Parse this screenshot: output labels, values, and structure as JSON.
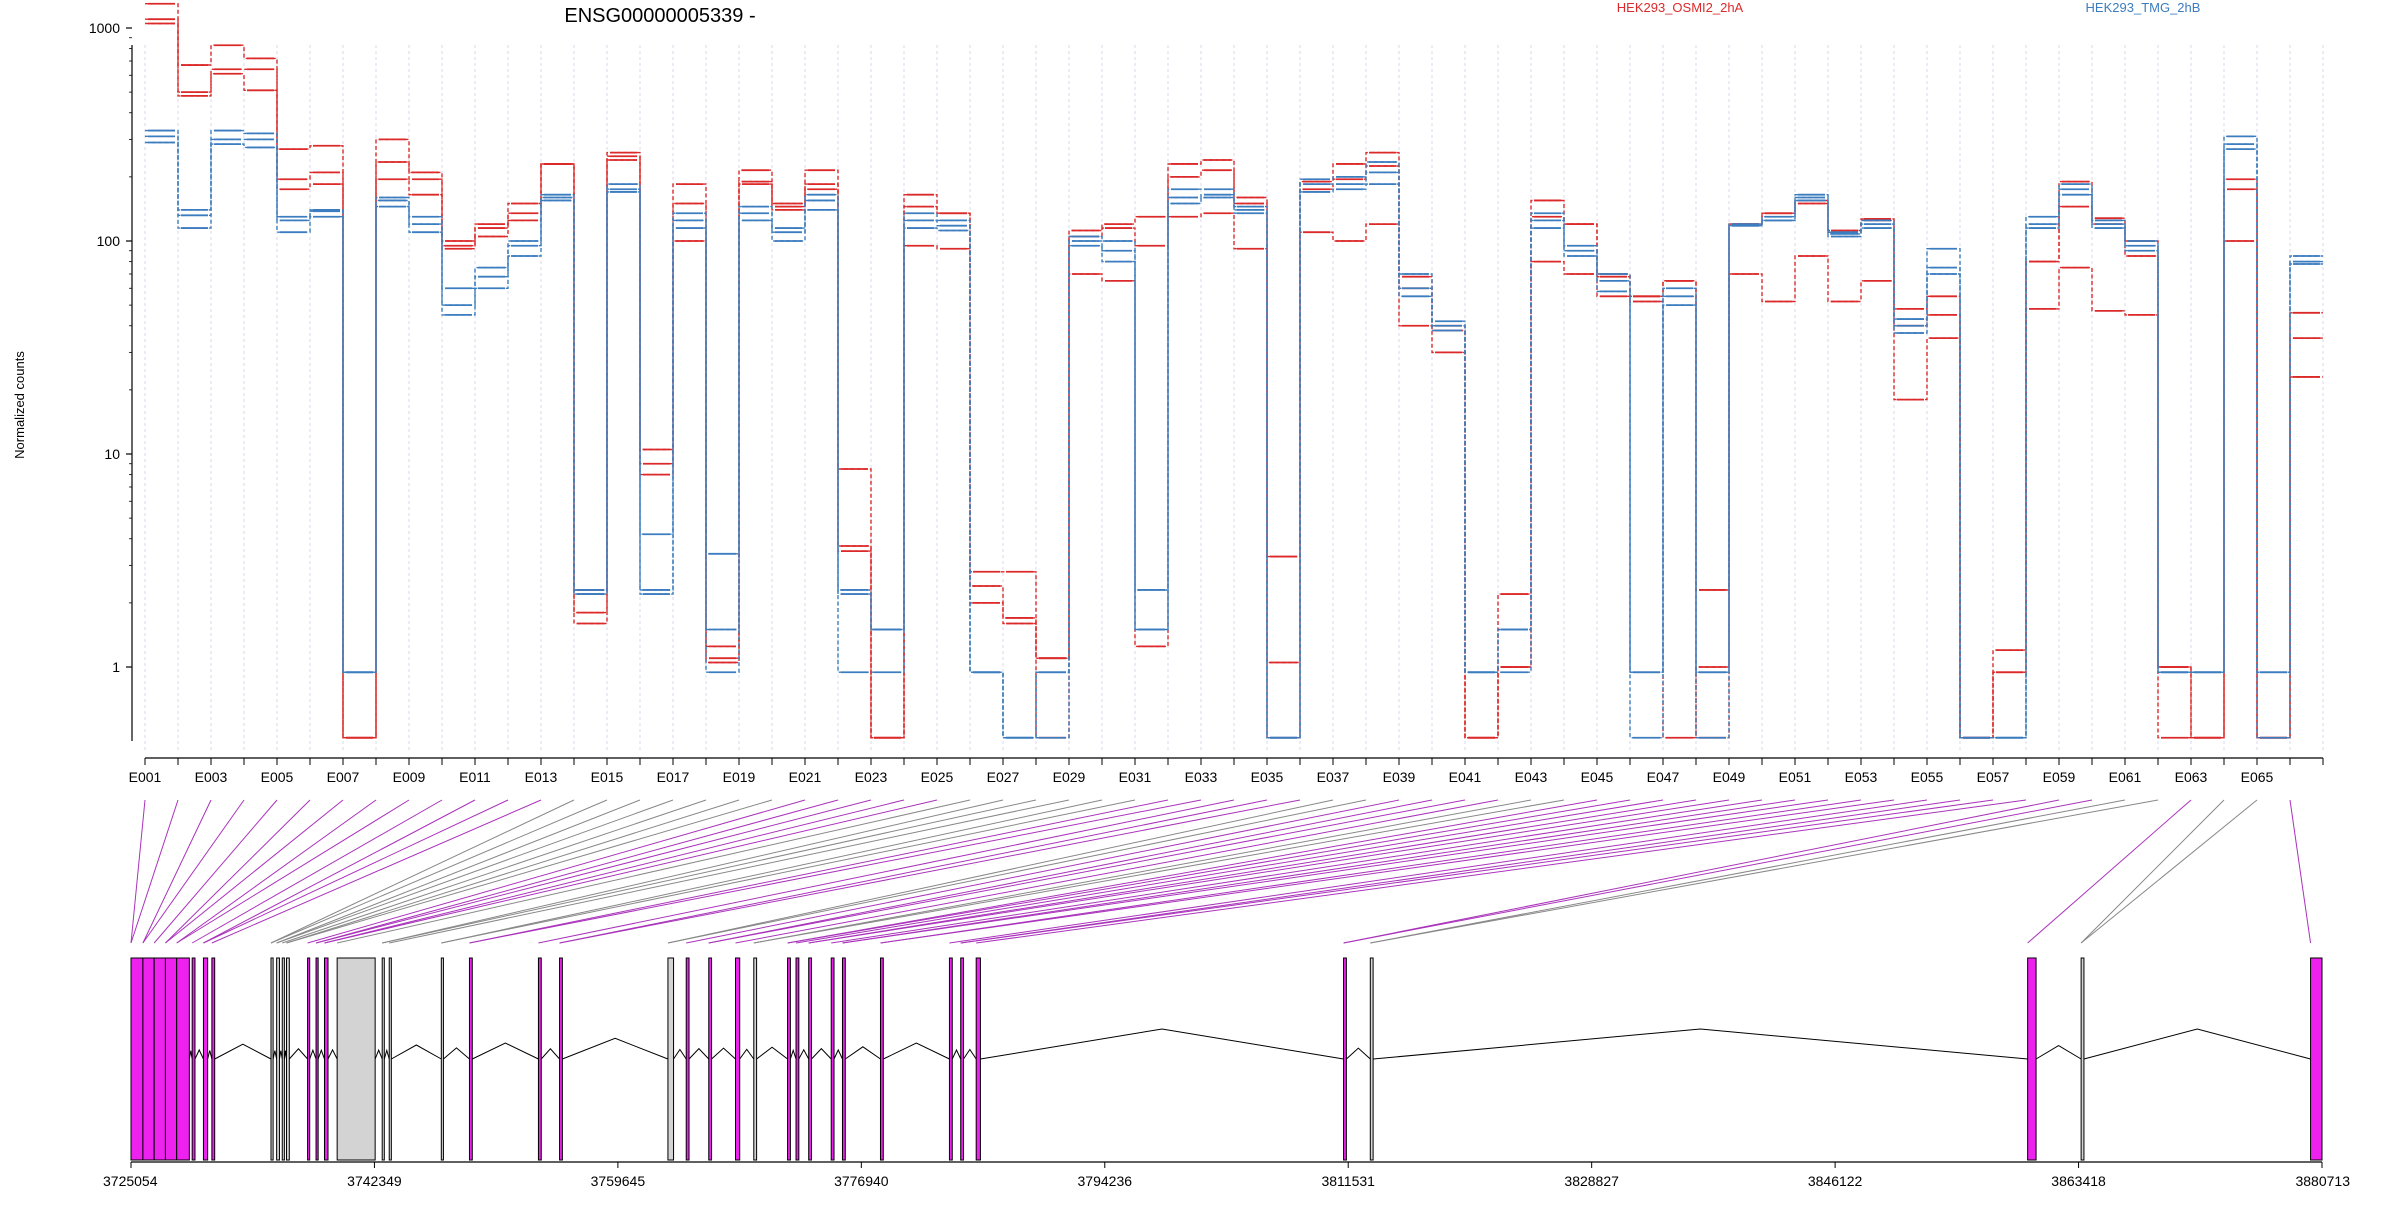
{
  "title": "ENSG00000005339 -",
  "chart_data": {
    "type": "line",
    "title": "ENSG00000005339 -",
    "ylabel": "Normalized counts",
    "yscale": "log",
    "ylim": [
      0.5,
      1800
    ],
    "yticks": [
      1,
      10,
      100,
      1000
    ],
    "ytick_labels": [
      "1",
      "10",
      "100",
      "1000"
    ],
    "legend_position": "top-right",
    "grid": "vertical dashed lines at exon boundaries",
    "colors": {
      "HEK293_OSMI2_2hA": "#dc2a2a",
      "HEK293_TMG_2hB": "#3c7dbf",
      "exon_highlight": "#ee22ee",
      "exon_plain": "#d3d3d3",
      "connector_highlight": "#aa33bb",
      "connector_plain": "#888888"
    },
    "exons": [
      "E001",
      "E002",
      "E003",
      "E004",
      "E005",
      "E006",
      "E007",
      "E008",
      "E009",
      "E010",
      "E011",
      "E012",
      "E013",
      "E014",
      "E015",
      "E016",
      "E017",
      "E018",
      "E019",
      "E020",
      "E021",
      "E022",
      "E023",
      "E024",
      "E025",
      "E026",
      "E027",
      "E028",
      "E029",
      "E030",
      "E031",
      "E032",
      "E033",
      "E034",
      "E035",
      "E036",
      "E037",
      "E038",
      "E039",
      "E040",
      "E041",
      "E042",
      "E043",
      "E044",
      "E045",
      "E046",
      "E047",
      "E048",
      "E049",
      "E050",
      "E051",
      "E052",
      "E053",
      "E054",
      "E055",
      "E056",
      "E057",
      "E058",
      "E059",
      "E060",
      "E061",
      "E062",
      "E063",
      "E064",
      "E065",
      "E066"
    ],
    "xtick_labels": [
      "E001",
      "E003",
      "E005",
      "E007",
      "E009",
      "E011",
      "E013",
      "E015",
      "E017",
      "E019",
      "E021",
      "E023",
      "E025",
      "E027",
      "E029",
      "E031",
      "E033",
      "E035",
      "E037",
      "E039",
      "E041",
      "E043",
      "E045",
      "E047",
      "E049",
      "E051",
      "E053",
      "E055",
      "E057",
      "E059",
      "E061",
      "E063",
      "E065"
    ],
    "series": [
      {
        "name": "HEK293_OSMI2_2hA",
        "group": "OSMI2",
        "values": [
          1300,
          670,
          830,
          720,
          270,
          280,
          0.5,
          300,
          210,
          100,
          120,
          150,
          230,
          2.3,
          260,
          9.0,
          185,
          1.1,
          215,
          150,
          215,
          8.5,
          0.5,
          165,
          135,
          2.8,
          2.8,
          1.1,
          112,
          120,
          130,
          230,
          240,
          160,
          3.3,
          190,
          230,
          260,
          68,
          40,
          0.5,
          2.2,
          155,
          120,
          70,
          55,
          65,
          2.3,
          120,
          135,
          155,
          112,
          127,
          48,
          55,
          0.5,
          1.2,
          80,
          190,
          128,
          100,
          1.0,
          0.5,
          195,
          0.5,
          46
        ]
      },
      {
        "name": "HEK293_OSMI2_2hA",
        "group": "OSMI2",
        "values": [
          1100,
          500,
          640,
          640,
          195,
          210,
          0.5,
          235,
          195,
          95,
          115,
          135,
          230,
          1.8,
          250,
          8.0,
          150,
          1.25,
          190,
          145,
          185,
          3.7,
          0.5,
          145,
          135,
          2.4,
          1.7,
          1.1,
          105,
          115,
          95,
          200,
          215,
          150,
          1.05,
          175,
          195,
          225,
          60,
          38,
          0.5,
          1.0,
          130,
          120,
          68,
          55,
          65,
          0.5,
          120,
          135,
          150,
          110,
          125,
          40,
          45,
          0.5,
          0.95,
          80,
          145,
          120,
          85,
          1.0,
          0.5,
          175,
          0.5,
          35
        ]
      },
      {
        "name": "HEK293_OSMI2_2hA",
        "group": "OSMI2",
        "values": [
          1050,
          480,
          610,
          510,
          175,
          185,
          0.5,
          195,
          165,
          92,
          105,
          125,
          230,
          1.6,
          240,
          10.5,
          100,
          1.05,
          185,
          140,
          175,
          3.5,
          0.5,
          95,
          92,
          2.0,
          1.6,
          0.5,
          70,
          65,
          1.25,
          130,
          135,
          92,
          0.5,
          110,
          100,
          120,
          40,
          30,
          0.5,
          1.0,
          80,
          70,
          55,
          52,
          0.5,
          1.0,
          70,
          52,
          85,
          52,
          65,
          18,
          35,
          0.5,
          0.95,
          48,
          75,
          47,
          45,
          0.5,
          0.5,
          100,
          0.5,
          23
        ]
      },
      {
        "name": "HEK293_TMG_2hB",
        "group": "TMG",
        "values": [
          330,
          140,
          330,
          320,
          130,
          140,
          0.95,
          160,
          130,
          60,
          75,
          100,
          165,
          2.2,
          185,
          4.2,
          135,
          3.4,
          145,
          115,
          165,
          2.3,
          1.5,
          135,
          125,
          0.95,
          0.5,
          0.95,
          105,
          100,
          2.3,
          175,
          175,
          145,
          0.5,
          195,
          200,
          235,
          70,
          42,
          0.95,
          1.5,
          135,
          95,
          70,
          0.95,
          60,
          0.95,
          120,
          130,
          165,
          110,
          125,
          43,
          92,
          0.5,
          0.5,
          130,
          185,
          125,
          100,
          0.95,
          0.95,
          310,
          0.95,
          85
        ]
      },
      {
        "name": "HEK293_TMG_2hB",
        "group": "TMG",
        "values": [
          310,
          132,
          300,
          300,
          125,
          138,
          0.95,
          155,
          120,
          50,
          68,
          95,
          160,
          2.2,
          175,
          2.3,
          125,
          1.5,
          135,
          110,
          155,
          2.2,
          1.5,
          125,
          118,
          0.95,
          0.5,
          0.95,
          100,
          90,
          1.5,
          160,
          165,
          140,
          0.5,
          185,
          185,
          210,
          60,
          40,
          0.95,
          1.5,
          125,
          90,
          65,
          0.95,
          55,
          0.95,
          118,
          125,
          160,
          108,
          120,
          40,
          75,
          0.5,
          0.5,
          120,
          175,
          120,
          95,
          0.95,
          0.95,
          285,
          0.95,
          80
        ]
      },
      {
        "name": "HEK293_TMG_2hB",
        "group": "TMG",
        "values": [
          290,
          115,
          285,
          275,
          110,
          130,
          0.95,
          145,
          110,
          45,
          60,
          85,
          155,
          2.3,
          170,
          2.2,
          115,
          0.95,
          125,
          100,
          140,
          0.95,
          0.95,
          115,
          112,
          0.95,
          0.5,
          0.5,
          95,
          80,
          1.5,
          150,
          160,
          135,
          0.5,
          170,
          175,
          185,
          55,
          38,
          0.95,
          0.95,
          115,
          85,
          58,
          0.5,
          50,
          0.5,
          118,
          125,
          155,
          105,
          115,
          37,
          70,
          0.5,
          0.5,
          115,
          165,
          115,
          90,
          0.95,
          0.95,
          270,
          0.5,
          78
        ]
      }
    ],
    "genomic_axis": {
      "ticks": [
        "3725054",
        "3742349",
        "3759645",
        "3776940",
        "3794236",
        "3811531",
        "3828827",
        "3846122",
        "3863418",
        "3880713"
      ]
    }
  }
}
